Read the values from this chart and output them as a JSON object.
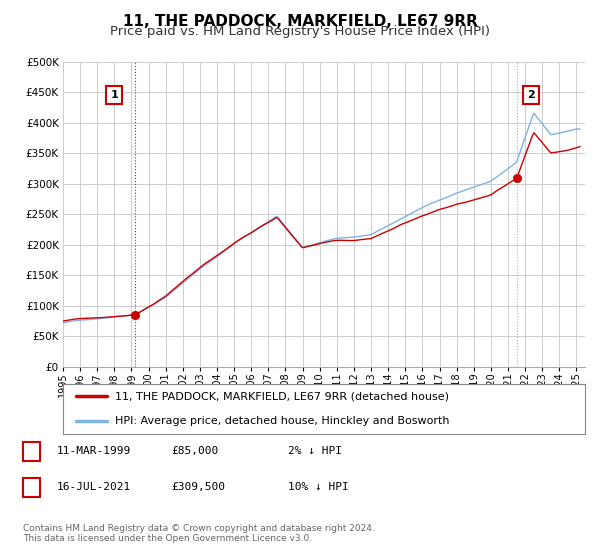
{
  "title": "11, THE PADDOCK, MARKFIELD, LE67 9RR",
  "subtitle": "Price paid vs. HM Land Registry's House Price Index (HPI)",
  "legend_entry1": "11, THE PADDOCK, MARKFIELD, LE67 9RR (detached house)",
  "legend_entry2": "HPI: Average price, detached house, Hinckley and Bosworth",
  "annotation1_label": "1",
  "annotation1_date": "11-MAR-1999",
  "annotation1_price": "£85,000",
  "annotation1_hpi": "2% ↓ HPI",
  "annotation2_label": "2",
  "annotation2_date": "16-JUL-2021",
  "annotation2_price": "£309,500",
  "annotation2_hpi": "10% ↓ HPI",
  "sale1_x": 1999.19,
  "sale1_y": 85000,
  "sale2_x": 2021.54,
  "sale2_y": 309500,
  "xmin": 1995.0,
  "xmax": 2025.5,
  "ymin": 0,
  "ymax": 500000,
  "yticks": [
    0,
    50000,
    100000,
    150000,
    200000,
    250000,
    300000,
    350000,
    400000,
    450000,
    500000
  ],
  "ytick_labels": [
    "£0",
    "£50K",
    "£100K",
    "£150K",
    "£200K",
    "£250K",
    "£300K",
    "£350K",
    "£400K",
    "£450K",
    "£500K"
  ],
  "xticks": [
    1995,
    1996,
    1997,
    1998,
    1999,
    2000,
    2001,
    2002,
    2003,
    2004,
    2005,
    2006,
    2007,
    2008,
    2009,
    2010,
    2011,
    2012,
    2013,
    2014,
    2015,
    2016,
    2017,
    2018,
    2019,
    2020,
    2021,
    2022,
    2023,
    2024,
    2025
  ],
  "hpi_color": "#7fb3e0",
  "price_color": "#cc0000",
  "sale_marker_color": "#cc0000",
  "background_color": "#ffffff",
  "plot_bg_color": "#ffffff",
  "grid_color": "#cccccc",
  "footer_text": "Contains HM Land Registry data © Crown copyright and database right 2024.\nThis data is licensed under the Open Government Licence v3.0.",
  "title_fontsize": 11,
  "subtitle_fontsize": 9.5,
  "annot_box_color": "#cc0000"
}
